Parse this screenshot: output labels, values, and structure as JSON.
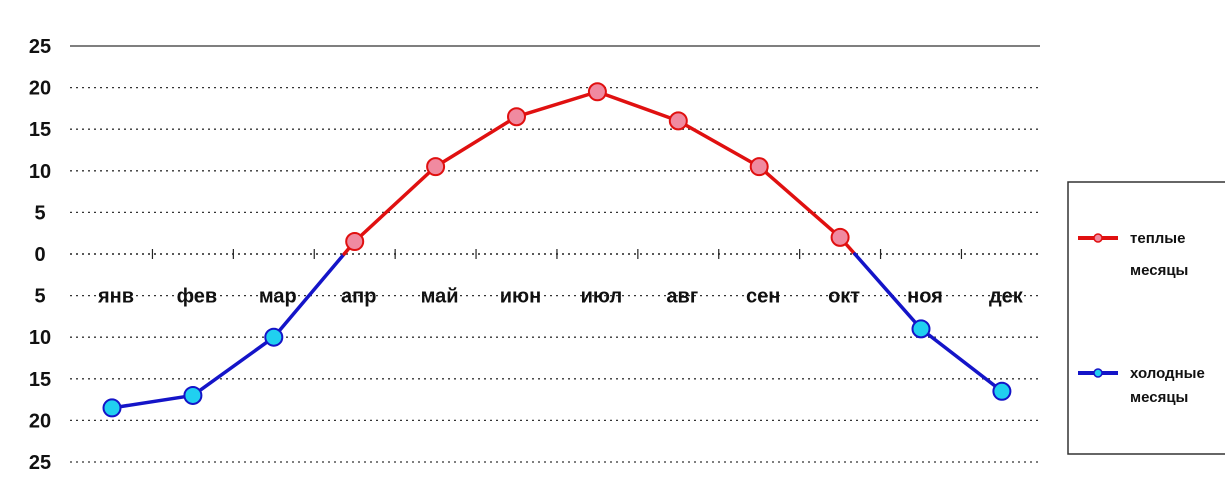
{
  "chart_data": {
    "type": "line",
    "categories": [
      "янв",
      "фев",
      "мар",
      "апр",
      "май",
      "июн",
      "июл",
      "авг",
      "сен",
      "окт",
      "ноя",
      "дек"
    ],
    "values": [
      -18.5,
      -17,
      -10,
      1.5,
      10.5,
      16.5,
      19.5,
      16,
      10.5,
      2,
      -9,
      -16.5
    ],
    "ylim": [
      -25,
      25
    ],
    "yticks": [
      25,
      20,
      15,
      10,
      5,
      0,
      -5,
      -10,
      -15,
      -20,
      -25
    ],
    "ytick_labels": [
      "25",
      "20",
      "15",
      "10",
      "5",
      "0",
      "5",
      "10",
      "15",
      "20",
      "25"
    ],
    "grid": true,
    "legend_position": "right",
    "series": [
      {
        "name": "теплые месяцы",
        "label_lines": [
          "теплые",
          "месяцы"
        ],
        "line_color": "#e01010",
        "marker_fill": "#f08aa0",
        "marker_stroke": "#e01010",
        "applies_to": "values >= 0"
      },
      {
        "name": "холодные месяцы",
        "label_lines": [
          "холодные",
          "месяцы"
        ],
        "line_color": "#1414c8",
        "marker_fill": "#20d0f0",
        "marker_stroke": "#1414c8",
        "applies_to": "values < 0"
      }
    ]
  }
}
